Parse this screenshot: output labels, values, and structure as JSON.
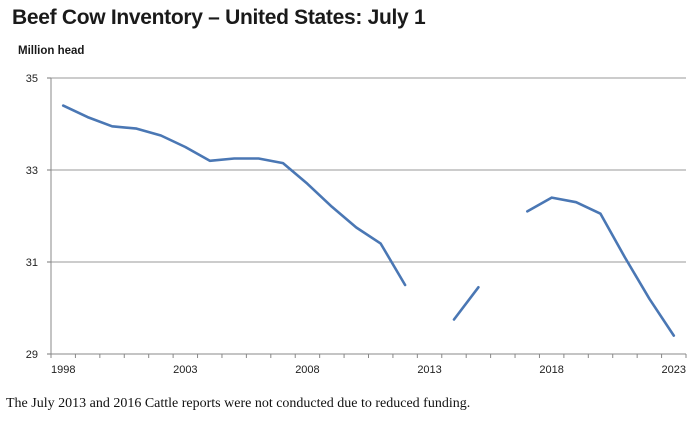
{
  "chart_data": {
    "type": "line",
    "title": "Beef Cow Inventory – United States: July 1",
    "ylabel": "Million head",
    "xlabel": "",
    "ylim": [
      29,
      35
    ],
    "xlim": [
      1998,
      2023
    ],
    "yticks": [
      29,
      31,
      33,
      35
    ],
    "xticks": [
      1998,
      2003,
      2008,
      2013,
      2018,
      2023
    ],
    "grid": "horizontal",
    "series": [
      {
        "color": "#4a77b4",
        "points": [
          [
            1998,
            34.4
          ],
          [
            1999,
            34.15
          ],
          [
            2000,
            33.95
          ],
          [
            2001,
            33.9
          ],
          [
            2002,
            33.75
          ],
          [
            2003,
            33.5
          ],
          [
            2004,
            33.2
          ],
          [
            2005,
            33.25
          ],
          [
            2006,
            33.25
          ],
          [
            2007,
            33.15
          ],
          [
            2008,
            32.7
          ],
          [
            2009,
            32.2
          ],
          [
            2010,
            31.75
          ],
          [
            2011,
            31.4
          ],
          [
            2012,
            30.5
          ],
          [
            2013,
            null
          ],
          [
            2014,
            29.75
          ],
          [
            2015,
            30.45
          ],
          [
            2016,
            null
          ],
          [
            2017,
            32.1
          ],
          [
            2018,
            32.4
          ],
          [
            2019,
            32.3
          ],
          [
            2020,
            32.05
          ],
          [
            2021,
            31.1
          ],
          [
            2022,
            30.2
          ],
          [
            2023,
            29.4
          ]
        ]
      }
    ]
  },
  "footnote": "The July 2013 and 2016 Cattle reports were not conducted due to reduced funding."
}
